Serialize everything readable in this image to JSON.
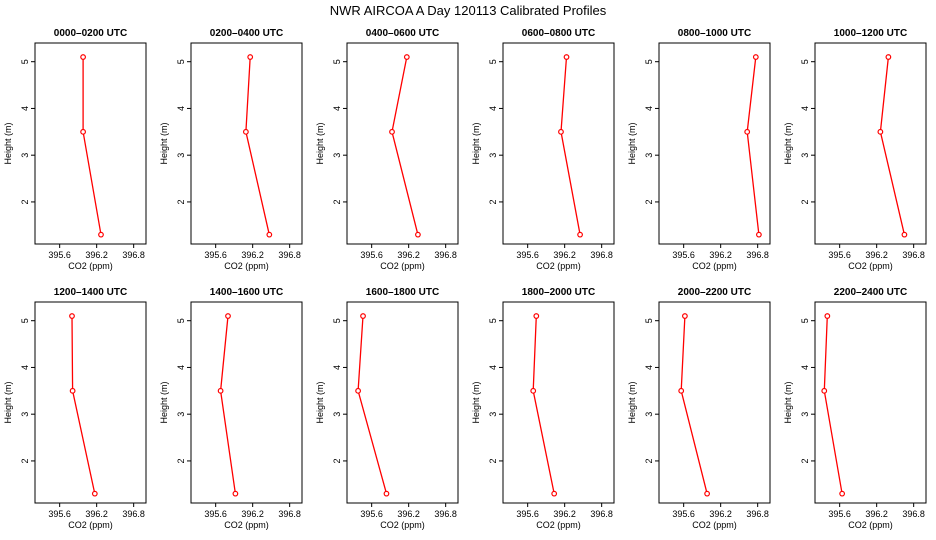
{
  "title": "NWR AIRCOA A  Day 120113  Calibrated Profiles",
  "chart_data": {
    "type": "line",
    "xlabel": "CO2 (ppm)",
    "ylabel": "Height (m)",
    "xlim": [
      395.2,
      397.0
    ],
    "ylim": [
      1.1,
      5.4
    ],
    "xticks": [
      395.6,
      396.2,
      396.8
    ],
    "xtick_labels": [
      "395.6",
      "396.2",
      "396.8"
    ],
    "yticks": [
      2,
      3,
      4,
      5
    ],
    "ytick_labels": [
      "2",
      "3",
      "4",
      "5"
    ],
    "heights": [
      5.1,
      3.5,
      1.3
    ],
    "line_color": "#ff0000",
    "panels": [
      {
        "title": "0000–0200 UTC",
        "co2": [
          395.98,
          395.98,
          396.27
        ]
      },
      {
        "title": "0200–0400 UTC",
        "co2": [
          396.16,
          396.09,
          396.47
        ]
      },
      {
        "title": "0400–0600 UTC",
        "co2": [
          396.17,
          395.93,
          396.35
        ]
      },
      {
        "title": "0600–0800 UTC",
        "co2": [
          396.23,
          396.14,
          396.45
        ]
      },
      {
        "title": "0800–1000 UTC",
        "co2": [
          396.77,
          396.63,
          396.82
        ]
      },
      {
        "title": "1000–1200 UTC",
        "co2": [
          396.39,
          396.26,
          396.65
        ]
      },
      {
        "title": "1200–1400 UTC",
        "co2": [
          395.8,
          395.81,
          396.17
        ]
      },
      {
        "title": "1400–1600 UTC",
        "co2": [
          395.8,
          395.68,
          395.92
        ]
      },
      {
        "title": "1600–1800 UTC",
        "co2": [
          395.46,
          395.38,
          395.84
        ]
      },
      {
        "title": "1800–2000 UTC",
        "co2": [
          395.74,
          395.69,
          396.03
        ]
      },
      {
        "title": "2000–2200 UTC",
        "co2": [
          395.62,
          395.56,
          395.98
        ]
      },
      {
        "title": "2200–2400 UTC",
        "co2": [
          395.4,
          395.35,
          395.64
        ]
      }
    ]
  }
}
